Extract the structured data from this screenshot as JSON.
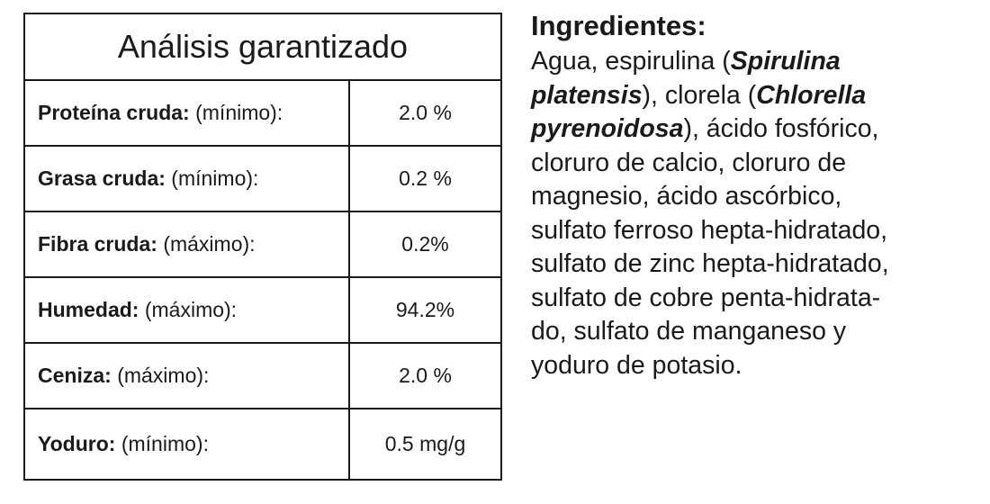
{
  "table": {
    "title": "Análisis garantizado",
    "rows": [
      {
        "label": "Proteína cruda:",
        "qualifier": "(mínimo):",
        "value": "2.0 %"
      },
      {
        "label": "Grasa cruda:",
        "qualifier": "(mínimo):",
        "value": "0.2 %"
      },
      {
        "label": "Fibra cruda:",
        "qualifier": "(máximo):",
        "value": "0.2%"
      },
      {
        "label": "Humedad:",
        "qualifier": "(máximo):",
        "value": "94.2%"
      },
      {
        "label": "Ceniza:",
        "qualifier": "(máximo):",
        "value": "2.0 %"
      },
      {
        "label": "Yoduro:",
        "qualifier": "(mínimo):",
        "value": "0.5 mg/g"
      }
    ]
  },
  "ingredients": {
    "title": "Ingredientes:",
    "lines": [
      [
        {
          "text": "Agua, espirulina ("
        },
        {
          "text": "Spirulina",
          "italic": true
        }
      ],
      [
        {
          "text": "platensis",
          "italic": true
        },
        {
          "text": "), clorela ("
        },
        {
          "text": "Chlorella",
          "italic": true
        }
      ],
      [
        {
          "text": "pyrenoidosa",
          "italic": true
        },
        {
          "text": "), ácido fosfórico,"
        }
      ],
      [
        {
          "text": "cloruro de calcio, cloruro de"
        }
      ],
      [
        {
          "text": "magnesio, ácido ascórbico,"
        }
      ],
      [
        {
          "text": "sulfato ferroso hepta-hidratado,"
        }
      ],
      [
        {
          "text": "sulfato de zinc hepta-hidratado,"
        }
      ],
      [
        {
          "text": "sulfato de cobre penta-hidrata-"
        }
      ],
      [
        {
          "text": "do, sulfato de manganeso y"
        }
      ],
      [
        {
          "text": "yoduro de potasio."
        }
      ]
    ]
  }
}
